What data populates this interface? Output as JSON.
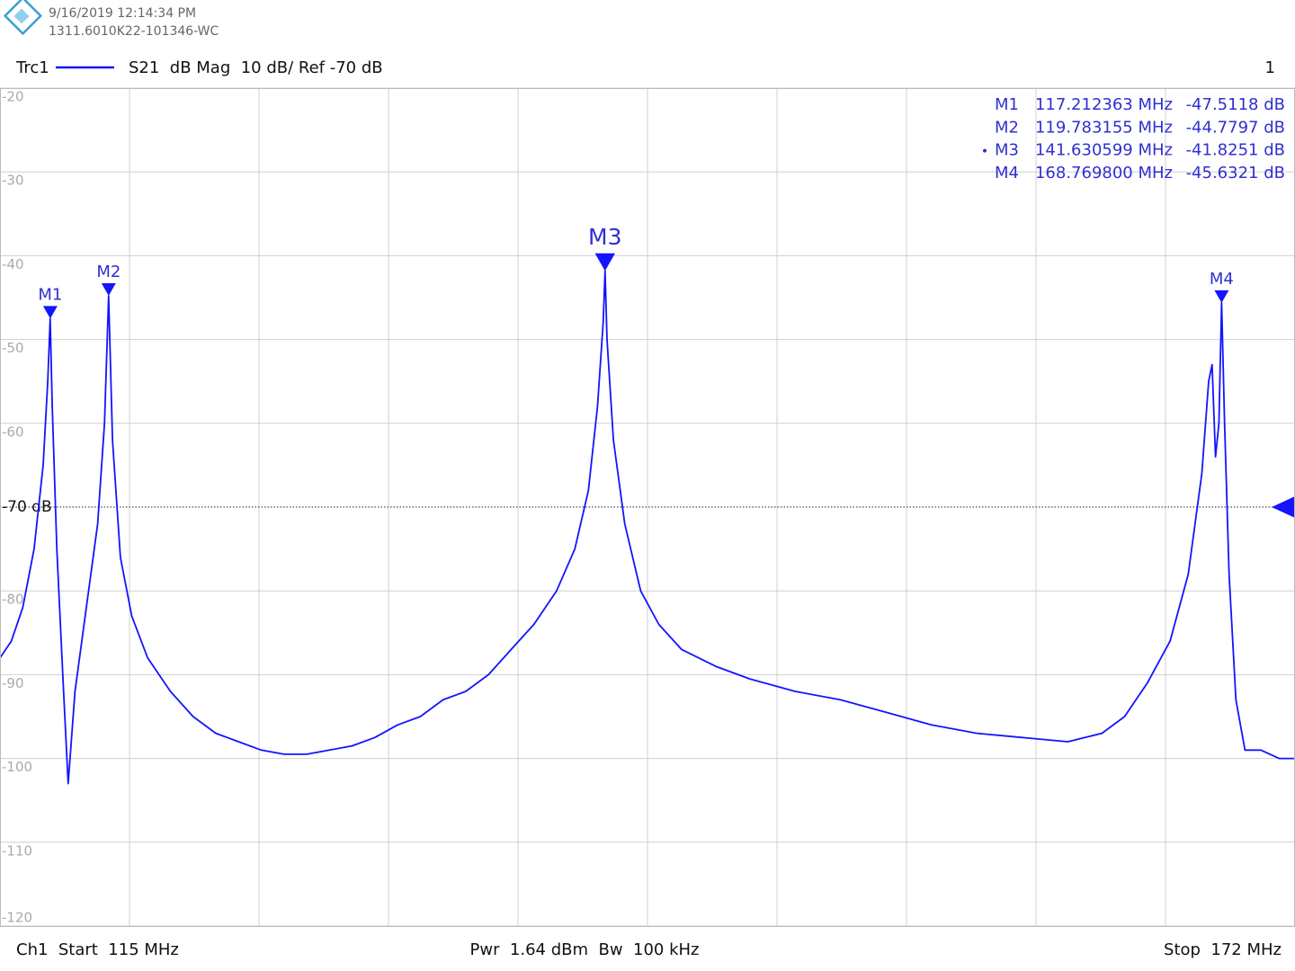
{
  "header": {
    "timestamp": "9/16/2019 12:14:34 PM",
    "device_id": "1311.6010K22-101346-WC",
    "trace_name": "Trc1",
    "trace_settings": "S21  dB Mag  10 dB/ Ref -70 dB",
    "window_number": "1"
  },
  "footer": {
    "start": "Ch1  Start  115 MHz",
    "power_bandwidth": "Pwr  1.64 dBm  Bw  100 kHz",
    "stop": "Stop  172 MHz"
  },
  "chart_data": {
    "type": "line",
    "x": [
      115.0,
      115.5,
      116.0,
      116.5,
      116.9,
      117.1,
      117.21,
      117.3,
      117.5,
      117.8,
      118.0,
      118.3,
      118.8,
      119.3,
      119.6,
      119.78,
      119.95,
      120.3,
      120.8,
      121.5,
      122.5,
      123.5,
      124.5,
      125.5,
      126.5,
      127.5,
      128.5,
      129.5,
      130.5,
      131.5,
      132.5,
      133.5,
      134.5,
      135.5,
      136.5,
      137.5,
      138.5,
      139.5,
      140.3,
      140.9,
      141.3,
      141.55,
      141.63,
      141.72,
      142.0,
      142.5,
      143.2,
      144.0,
      145.0,
      146.5,
      148.0,
      150.0,
      152.0,
      154.0,
      156.0,
      158.0,
      160.0,
      162.0,
      163.5,
      164.5,
      165.5,
      166.5,
      167.3,
      167.9,
      168.2,
      168.35,
      168.5,
      168.65,
      168.77,
      168.9,
      169.1,
      169.4,
      169.8,
      170.5,
      171.3,
      172.0
    ],
    "series": [
      {
        "name": "Trc1",
        "color": "#1414ff",
        "values": [
          -88,
          -86,
          -82,
          -75,
          -65,
          -55,
          -47.5,
          -58,
          -75,
          -92,
          -103,
          -92,
          -82,
          -72,
          -60,
          -44.8,
          -62,
          -76,
          -83,
          -88,
          -92,
          -95,
          -97,
          -98,
          -99,
          -99.5,
          -99.5,
          -99,
          -98.5,
          -97.5,
          -96,
          -95,
          -93,
          -92,
          -90,
          -87,
          -84,
          -80,
          -75,
          -68,
          -58,
          -48,
          -41.8,
          -50,
          -62,
          -72,
          -80,
          -84,
          -87,
          -89,
          -90.5,
          -92,
          -93,
          -94.5,
          -96,
          -97,
          -97.5,
          -98,
          -97,
          -95,
          -91,
          -86,
          -78,
          -66,
          -55,
          -53,
          -64,
          -60,
          -45.6,
          -60,
          -78,
          -93,
          -99,
          -99,
          -100,
          -100
        ]
      }
    ],
    "xlim": [
      115,
      172
    ],
    "xticks": [
      115,
      120.7,
      126.4,
      132.1,
      137.8,
      143.5,
      149.2,
      154.9,
      160.6,
      166.3,
      172
    ],
    "ylim": [
      -120,
      -20
    ],
    "yticks": [
      -20,
      -30,
      -40,
      -50,
      -60,
      {
        "value": -70,
        "label": "-70 dB"
      },
      -80,
      -90,
      -100,
      -110,
      -120
    ],
    "ref_level": -70,
    "grid": true,
    "markers": [
      {
        "name": "M1",
        "x": 117.212363,
        "y": -47.5118,
        "x_label": "117.212363 MHz",
        "y_label": "-47.5118 dB",
        "active": false
      },
      {
        "name": "M2",
        "x": 119.783155,
        "y": -44.7797,
        "x_label": "119.783155 MHz",
        "y_label": "-44.7797 dB",
        "active": false
      },
      {
        "name": "M3",
        "x": 141.630599,
        "y": -41.8251,
        "x_label": "141.630599 MHz",
        "y_label": "-41.8251 dB",
        "active": true
      },
      {
        "name": "M4",
        "x": 168.7698,
        "y": -45.6321,
        "x_label": "168.769800 MHz",
        "y_label": "-45.6321 dB",
        "active": false
      }
    ]
  }
}
